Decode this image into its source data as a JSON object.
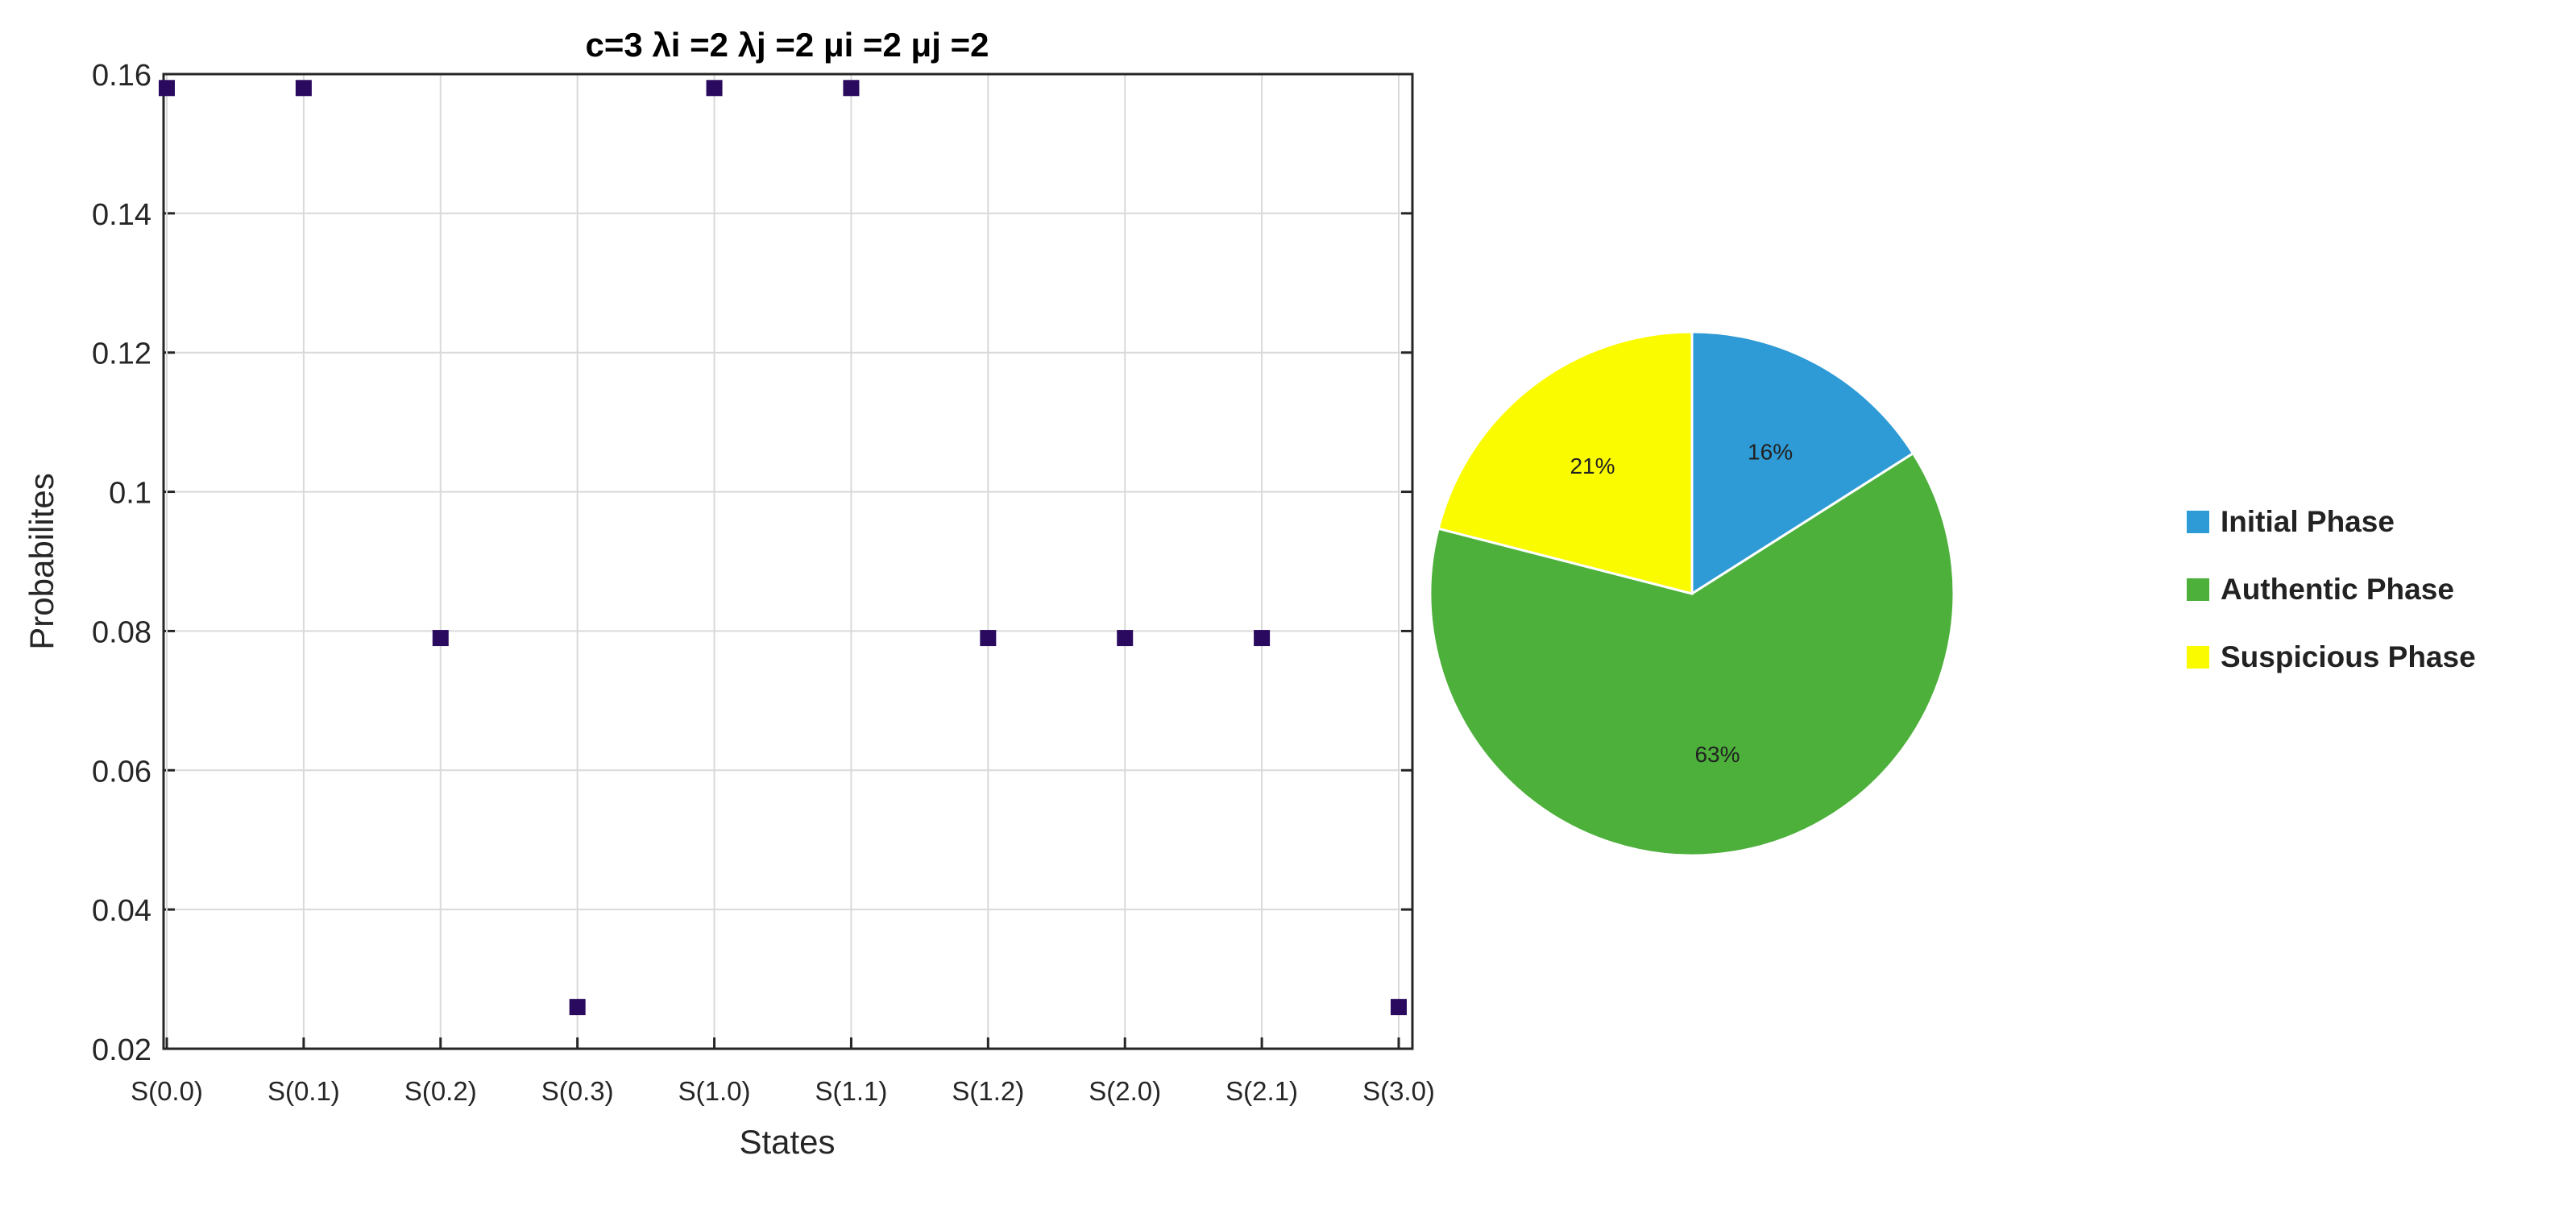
{
  "chart_data": [
    {
      "type": "scatter",
      "title": "c=3  λi =2  λj =2  μi =2  μj =2",
      "xlabel": "States",
      "ylabel": "Probabilites",
      "categories": [
        "S(0.0)",
        "S(0.1)",
        "S(0.2)",
        "S(0.3)",
        "S(1.0)",
        "S(1.1)",
        "S(1.2)",
        "S(2.0)",
        "S(2.1)",
        "S(3.0)"
      ],
      "values": [
        0.158,
        0.158,
        0.079,
        0.026,
        0.158,
        0.158,
        0.079,
        0.079,
        0.079,
        0.026
      ],
      "ylim": [
        0.02,
        0.16
      ],
      "yticks": [
        "0.02",
        "0.04",
        "0.06",
        "0.08",
        "0.1",
        "0.12",
        "0.14",
        "0.16"
      ],
      "grid": true,
      "marker_color": "#2a0a5e"
    },
    {
      "type": "pie",
      "slices": [
        {
          "name": "Initial Phase",
          "value": 16,
          "label": "16%",
          "color": "#2e9bd6"
        },
        {
          "name": "Authentic Phase",
          "value": 63,
          "label": "63%",
          "color": "#4cb03a"
        },
        {
          "name": "Suspicious Phase",
          "value": 21,
          "label": "21%",
          "color": "#fbfb00"
        }
      ],
      "legend_position": "right"
    }
  ]
}
